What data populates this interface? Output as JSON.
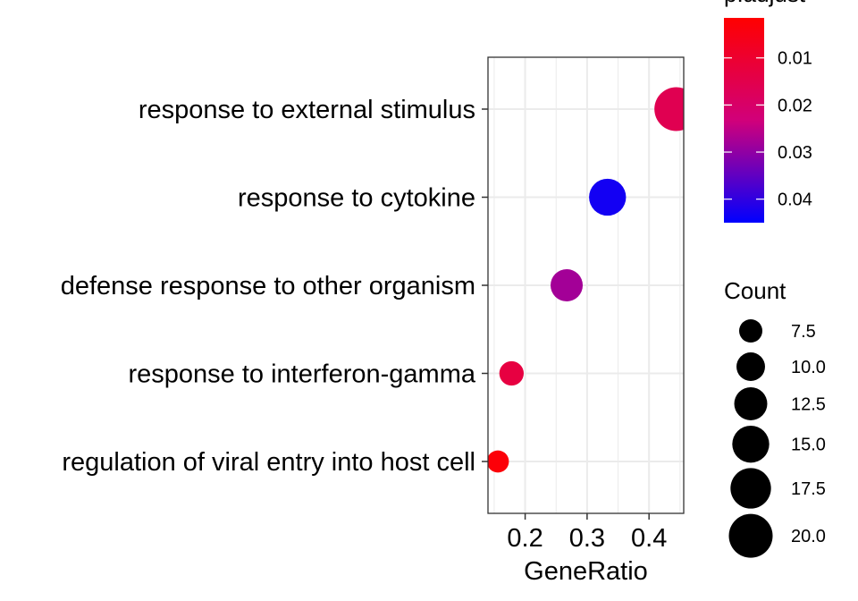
{
  "chart_data": {
    "type": "scatter",
    "xlabel": "GeneRatio",
    "xlim": [
      0.14,
      0.456
    ],
    "xticks": [
      0.2,
      0.3,
      0.4
    ],
    "xtick_labels": [
      "0.2",
      "0.3",
      "0.4"
    ],
    "grid": true,
    "categories": [
      "response to external stimulus",
      "response to cytokine",
      "defense response to other organism",
      "response to interferon-gamma",
      "regulation of viral entry into host cell"
    ],
    "points": [
      {
        "term": "response to external stimulus",
        "gene_ratio": 0.444,
        "count": 20,
        "p_adjust": 0.016
      },
      {
        "term": "response to cytokine",
        "gene_ratio": 0.333,
        "count": 15,
        "p_adjust": 0.043
      },
      {
        "term": "defense response to other organism",
        "gene_ratio": 0.267,
        "count": 12,
        "p_adjust": 0.028
      },
      {
        "term": "response to interferon-gamma",
        "gene_ratio": 0.178,
        "count": 8,
        "p_adjust": 0.013
      },
      {
        "term": "regulation of viral entry into host cell",
        "gene_ratio": 0.156,
        "count": 7,
        "p_adjust": 0.003
      }
    ],
    "color_legend": {
      "title": "p.adjust",
      "low_color": "#FF0000",
      "high_color": "#0000FF",
      "range": [
        0.0015,
        0.045
      ],
      "breaks": [
        0.01,
        0.02,
        0.03,
        0.04
      ],
      "labels": [
        "0.01",
        "0.02",
        "0.03",
        "0.04"
      ]
    },
    "size_legend": {
      "title": "Count",
      "breaks": [
        7.5,
        10.0,
        12.5,
        15.0,
        17.5,
        20.0
      ],
      "labels": [
        "7.5",
        "10.0",
        "12.5",
        "15.0",
        "17.5",
        "20.0"
      ]
    }
  }
}
